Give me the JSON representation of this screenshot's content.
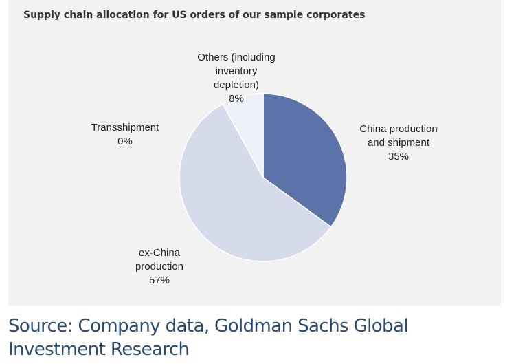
{
  "chart_data": {
    "type": "pie",
    "title": "Supply chain allocation for US orders of our sample corporates",
    "start_angle_deg": 0,
    "direction": "clockwise",
    "slices": [
      {
        "label": "China production\nand shipment",
        "value": 35,
        "value_label": "35%",
        "color": "#5b73a8"
      },
      {
        "label": "ex-China\nproduction",
        "value": 57,
        "value_label": "57%",
        "color": "#d5dbea"
      },
      {
        "label": "Transshipment",
        "value": 0,
        "value_label": "0%",
        "color": "#c9d0e2"
      },
      {
        "label": "Others (including\ninventory\ndepletion)",
        "value": 8,
        "value_label": "8%",
        "color": "#edf0f6"
      }
    ]
  },
  "footer": {
    "source": "Source: Company data, Goldman Sachs Global Investment Research"
  }
}
